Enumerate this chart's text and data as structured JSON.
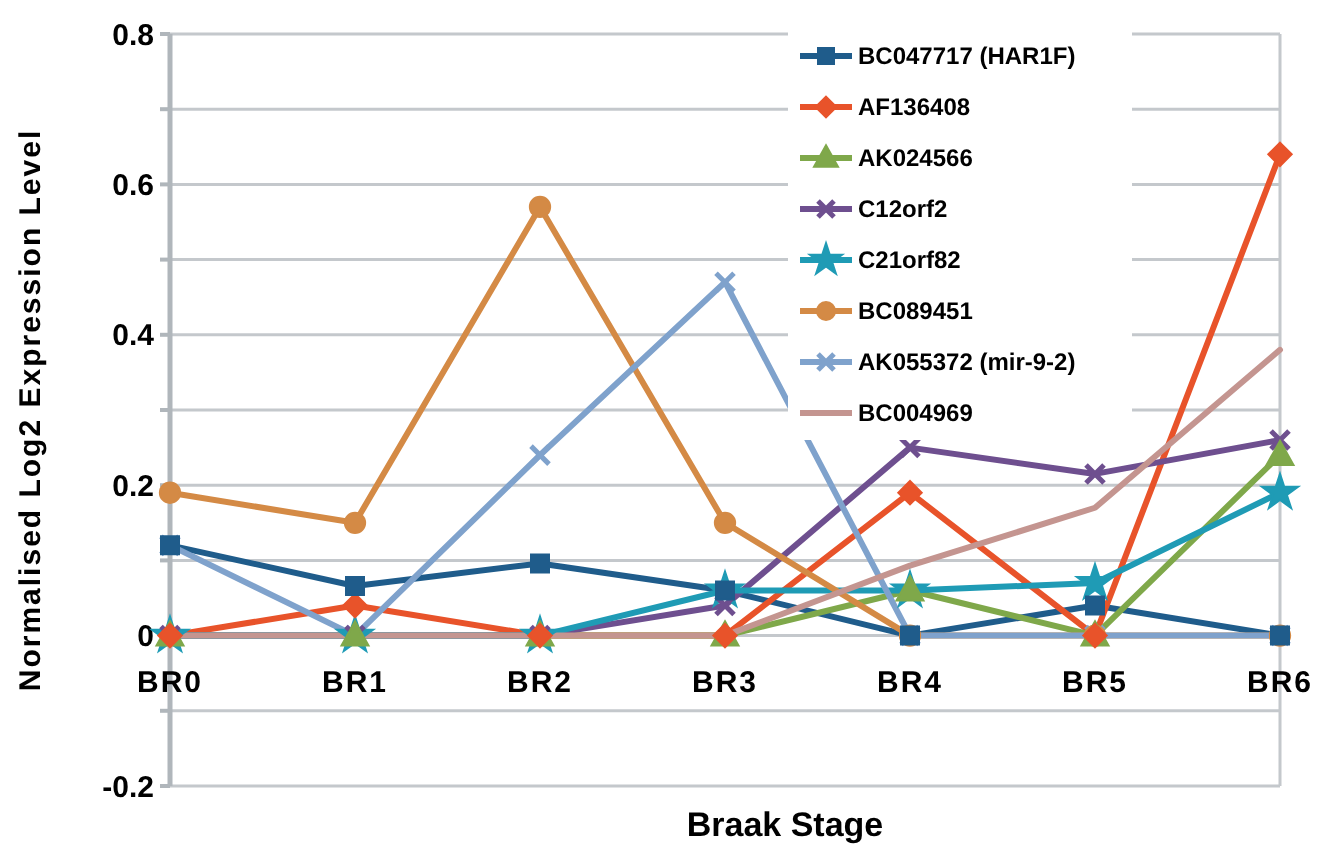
{
  "chart_data": {
    "type": "line",
    "xlabel": "Braak Stage",
    "ylabel": "Normalised Log2 Expression Level",
    "categories": [
      "BR0",
      "BR1",
      "BR2",
      "BR3",
      "BR4",
      "BR5",
      "BR6"
    ],
    "ylim": [
      -0.2,
      0.8
    ],
    "yticks": [
      -0.2,
      {
        "value": -0.1,
        "label": null
      },
      0,
      {
        "value": 0.1,
        "label": null
      },
      0.2,
      {
        "value": 0.3,
        "label": null
      },
      0.4,
      {
        "value": 0.5,
        "label": null
      },
      0.6,
      {
        "value": 0.7,
        "label": null
      },
      0.8
    ],
    "grid": "y",
    "legend": "top right",
    "series": [
      {
        "name": "BC047717 (HAR1F)",
        "color": "#1f5c8b",
        "marker": "square",
        "values": [
          0.12,
          0.066,
          0.096,
          0.06,
          0,
          0.04,
          0
        ]
      },
      {
        "name": "AF136408",
        "color": "#e8532a",
        "marker": "diamond",
        "values": [
          0,
          0.04,
          0,
          0,
          0.19,
          0,
          0.64
        ]
      },
      {
        "name": "AK024566",
        "color": "#7fa84a",
        "marker": "triangle",
        "values": [
          0,
          0,
          0,
          0,
          0.06,
          0,
          0.24
        ]
      },
      {
        "name": "C12orf2",
        "color": "#6e4f8f",
        "marker": "cross",
        "values": [
          0,
          0,
          0,
          0.04,
          0.25,
          0.215,
          0.26
        ]
      },
      {
        "name": "C21orf82",
        "color": "#1f9bb5",
        "marker": "star",
        "values": [
          0,
          0,
          0,
          0.06,
          0.06,
          0.07,
          0.19
        ]
      },
      {
        "name": "BC089451",
        "color": "#d48a45",
        "marker": "circle",
        "values": [
          0.19,
          0.15,
          0.57,
          0.15,
          0,
          0,
          0
        ]
      },
      {
        "name": "AK055372 (mir-9-2)",
        "color": "#7fa2cc",
        "marker": "cross",
        "values": [
          0.12,
          0,
          0.24,
          0.47,
          0,
          0,
          0
        ]
      },
      {
        "name": "BC004969",
        "color": "#c49590",
        "marker": "none",
        "values": [
          0,
          0,
          0,
          0,
          0.093,
          0.17,
          0.38
        ]
      }
    ]
  }
}
